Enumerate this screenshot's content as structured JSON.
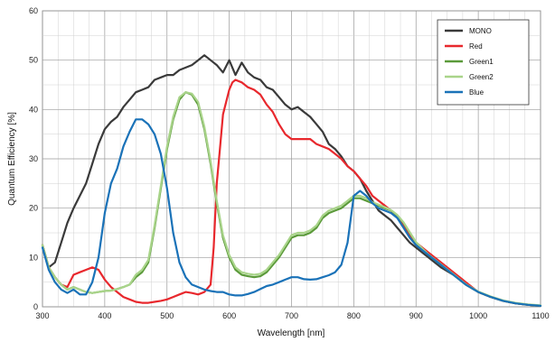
{
  "chart_data": {
    "type": "line",
    "xlabel": "Wavelength [nm]",
    "ylabel": "Quantum Efficiency [%]",
    "xlim": [
      300,
      1100
    ],
    "ylim": [
      0,
      60
    ],
    "x_ticks": [
      "300",
      "400",
      "500",
      "600",
      "700",
      "800",
      "900",
      "1000",
      "1100"
    ],
    "y_ticks": [
      "0",
      "10",
      "20",
      "30",
      "40",
      "50",
      "60"
    ],
    "grid": true,
    "legend_position": "top-right",
    "series": [
      {
        "name": "MONO",
        "color": "#3a3a3a",
        "x": [
          300,
          310,
          320,
          330,
          340,
          350,
          360,
          370,
          380,
          390,
          400,
          410,
          420,
          430,
          440,
          450,
          460,
          470,
          480,
          490,
          500,
          510,
          520,
          530,
          540,
          550,
          560,
          570,
          580,
          590,
          600,
          610,
          620,
          630,
          640,
          650,
          660,
          670,
          680,
          690,
          700,
          710,
          720,
          730,
          740,
          750,
          760,
          770,
          780,
          790,
          800,
          810,
          820,
          830,
          840,
          850,
          860,
          870,
          880,
          890,
          900,
          920,
          940,
          960,
          980,
          1000,
          1020,
          1040,
          1060,
          1080,
          1100
        ],
        "y": [
          12.5,
          8,
          9,
          13,
          17,
          20,
          22.5,
          25,
          29,
          33,
          36,
          37.5,
          38.5,
          40.5,
          42,
          43.5,
          44,
          44.5,
          46,
          46.5,
          47,
          47,
          48,
          48.5,
          49,
          50,
          51,
          50,
          49,
          47.5,
          50,
          47,
          49.5,
          47.5,
          46.5,
          46,
          44.5,
          44,
          42.5,
          41,
          40,
          40.5,
          39.5,
          38.5,
          37,
          35.5,
          33,
          32,
          30.5,
          28.5,
          27.5,
          26,
          23.5,
          21.5,
          19.5,
          18.5,
          17.5,
          16,
          14.5,
          13,
          12,
          10,
          8,
          6.5,
          4.5,
          3,
          2,
          1.2,
          0.7,
          0.4,
          0.2
        ]
      },
      {
        "name": "Red",
        "color": "#e8282d",
        "x": [
          300,
          310,
          320,
          330,
          340,
          350,
          360,
          370,
          380,
          390,
          400,
          410,
          420,
          430,
          440,
          450,
          460,
          470,
          480,
          490,
          500,
          510,
          520,
          530,
          540,
          550,
          560,
          570,
          575,
          580,
          585,
          590,
          600,
          605,
          610,
          620,
          630,
          640,
          650,
          660,
          670,
          680,
          690,
          700,
          710,
          720,
          730,
          740,
          750,
          760,
          770,
          780,
          790,
          800,
          810,
          820,
          830,
          840,
          850,
          860,
          870,
          880,
          890,
          900,
          920,
          940,
          960,
          980,
          1000,
          1020,
          1040,
          1060,
          1080,
          1100
        ],
        "y": [
          12.5,
          8,
          6,
          4.5,
          4,
          6.5,
          7,
          7.5,
          8,
          7.5,
          5.5,
          4,
          3,
          2,
          1.5,
          1,
          0.8,
          0.8,
          1,
          1.2,
          1.5,
          2,
          2.5,
          3,
          2.8,
          2.5,
          3,
          4.5,
          12,
          25,
          32,
          39,
          44,
          45.5,
          46,
          45.5,
          44.5,
          44,
          43,
          41,
          39.5,
          37,
          35,
          34,
          34,
          34,
          34,
          33,
          32.5,
          32,
          31,
          30,
          28.5,
          27.5,
          26,
          24.5,
          22.5,
          21.5,
          20.5,
          19.5,
          18,
          16.5,
          14.5,
          13,
          11,
          9,
          7,
          5,
          3,
          2,
          1.2,
          0.7,
          0.4,
          0.2
        ]
      },
      {
        "name": "Green1",
        "color": "#5b9a3a",
        "x": [
          300,
          310,
          320,
          330,
          340,
          350,
          360,
          370,
          380,
          390,
          400,
          410,
          420,
          430,
          440,
          450,
          460,
          470,
          480,
          490,
          500,
          510,
          520,
          530,
          540,
          550,
          560,
          570,
          580,
          590,
          600,
          610,
          620,
          630,
          640,
          650,
          660,
          670,
          680,
          690,
          700,
          710,
          720,
          730,
          740,
          750,
          760,
          770,
          780,
          790,
          800,
          810,
          820,
          830,
          840,
          850,
          860,
          870,
          880,
          890,
          900,
          920,
          940,
          960,
          980,
          1000,
          1020,
          1040,
          1060,
          1080,
          1100
        ],
        "y": [
          12.5,
          8,
          6,
          4.5,
          3.5,
          4,
          3.5,
          3,
          2.8,
          3,
          3.2,
          3.3,
          3.6,
          4,
          4.5,
          6,
          7,
          9,
          16,
          24,
          32,
          38,
          42,
          43.5,
          43,
          41,
          36,
          29,
          21,
          14,
          10,
          7.5,
          6.5,
          6.2,
          6,
          6.2,
          7,
          8.5,
          10,
          12,
          14,
          14.5,
          14.5,
          15,
          16,
          18,
          19,
          19.5,
          20,
          21,
          22,
          22,
          21.5,
          21,
          20.5,
          20,
          19.5,
          18.5,
          17,
          15,
          13,
          10.5,
          8.5,
          6.5,
          4.5,
          3,
          2,
          1.2,
          0.7,
          0.4,
          0.2
        ]
      },
      {
        "name": "Green2",
        "color": "#a9d48a",
        "x": [
          300,
          310,
          320,
          330,
          340,
          350,
          360,
          370,
          380,
          390,
          400,
          410,
          420,
          430,
          440,
          450,
          460,
          470,
          480,
          490,
          500,
          510,
          520,
          530,
          540,
          550,
          560,
          570,
          580,
          590,
          600,
          610,
          620,
          630,
          640,
          650,
          660,
          670,
          680,
          690,
          700,
          710,
          720,
          730,
          740,
          750,
          760,
          770,
          780,
          790,
          800,
          810,
          820,
          830,
          840,
          850,
          860,
          870,
          880,
          890,
          900,
          920,
          940,
          960,
          980,
          1000,
          1020,
          1040,
          1060,
          1080,
          1100
        ],
        "y": [
          12.5,
          8,
          6,
          4.5,
          3.5,
          4,
          3.5,
          3,
          2.8,
          3,
          3.2,
          3.3,
          3.6,
          4,
          4.5,
          6.5,
          7.5,
          9.5,
          16.5,
          24.5,
          32.5,
          38.5,
          42.5,
          43.5,
          43.2,
          41.5,
          36.5,
          29.5,
          21.5,
          14.5,
          10.5,
          8,
          7,
          6.7,
          6.5,
          6.7,
          7.5,
          9,
          10.5,
          12.5,
          14.5,
          15,
          15,
          15.5,
          16.5,
          18.5,
          19.5,
          20,
          20.5,
          21.5,
          22.5,
          22.5,
          22,
          21.2,
          20.7,
          20.2,
          19.6,
          18.6,
          17.1,
          15.1,
          13.1,
          10.6,
          8.6,
          6.6,
          4.6,
          3.1,
          2.1,
          1.3,
          0.8,
          0.5,
          0.3
        ]
      },
      {
        "name": "Blue",
        "color": "#1a72b8",
        "x": [
          300,
          310,
          320,
          330,
          340,
          350,
          360,
          370,
          380,
          390,
          400,
          410,
          420,
          430,
          440,
          450,
          460,
          470,
          480,
          490,
          500,
          510,
          520,
          530,
          540,
          550,
          560,
          570,
          580,
          590,
          600,
          610,
          620,
          630,
          640,
          650,
          660,
          670,
          680,
          690,
          700,
          710,
          720,
          730,
          740,
          750,
          760,
          770,
          780,
          790,
          800,
          810,
          820,
          830,
          840,
          850,
          860,
          870,
          880,
          890,
          900,
          920,
          940,
          960,
          980,
          1000,
          1020,
          1040,
          1060,
          1080,
          1100
        ],
        "y": [
          12,
          7.5,
          5,
          3.5,
          2.8,
          3.5,
          2.5,
          2.5,
          5,
          10,
          19,
          25,
          28,
          32.5,
          35.5,
          38,
          38,
          37,
          35,
          31,
          24,
          15,
          9,
          6,
          4.5,
          4,
          3.5,
          3.2,
          3,
          3,
          2.5,
          2.3,
          2.3,
          2.6,
          3,
          3.6,
          4.2,
          4.5,
          5,
          5.5,
          6,
          6,
          5.6,
          5.5,
          5.6,
          6,
          6.4,
          7,
          8.5,
          13,
          22.5,
          23.5,
          22.5,
          21,
          20,
          19.5,
          19,
          18,
          16,
          14,
          12.5,
          10.5,
          8.5,
          6.5,
          4.5,
          3,
          2,
          1.2,
          0.7,
          0.4,
          0.2
        ]
      }
    ]
  }
}
